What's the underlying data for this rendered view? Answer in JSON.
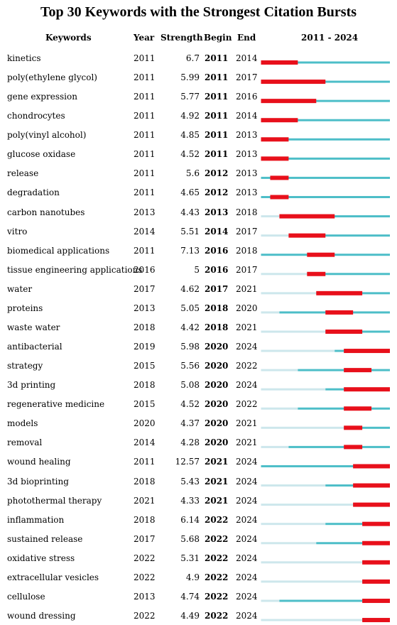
{
  "title": "Top 30 Keywords with the Strongest Citation Bursts",
  "columns": {
    "keywords": "Keywords",
    "year": "Year",
    "strength": "Strength",
    "begin": "Begin",
    "end": "End",
    "range": "2011 - 2024"
  },
  "chart_data": {
    "type": "table",
    "title": "Top 30 Keywords with the Strongest Citation Bursts",
    "timeline": [
      2011,
      2024
    ],
    "colors": {
      "burst": "#e8101b",
      "active": "#4dbec8",
      "inactive": "#cde7ec"
    },
    "rows": [
      {
        "keyword": "kinetics",
        "year": "2011",
        "strength": "6.7",
        "begin": "2011",
        "end": "2014"
      },
      {
        "keyword": "poly(ethylene glycol)",
        "year": "2011",
        "strength": "5.99",
        "begin": "2011",
        "end": "2017"
      },
      {
        "keyword": "gene expression",
        "year": "2011",
        "strength": "5.77",
        "begin": "2011",
        "end": "2016"
      },
      {
        "keyword": "chondrocytes",
        "year": "2011",
        "strength": "4.92",
        "begin": "2011",
        "end": "2014"
      },
      {
        "keyword": "poly(vinyl alcohol)",
        "year": "2011",
        "strength": "4.85",
        "begin": "2011",
        "end": "2013"
      },
      {
        "keyword": "glucose oxidase",
        "year": "2011",
        "strength": "4.52",
        "begin": "2011",
        "end": "2013"
      },
      {
        "keyword": "release",
        "year": "2011",
        "strength": "5.6",
        "begin": "2012",
        "end": "2013"
      },
      {
        "keyword": "degradation",
        "year": "2011",
        "strength": "4.65",
        "begin": "2012",
        "end": "2013"
      },
      {
        "keyword": "carbon nanotubes",
        "year": "2013",
        "strength": "4.43",
        "begin": "2013",
        "end": "2018"
      },
      {
        "keyword": "vitro",
        "year": "2014",
        "strength": "5.51",
        "begin": "2014",
        "end": "2017"
      },
      {
        "keyword": "biomedical applications",
        "year": "2011",
        "strength": "7.13",
        "begin": "2016",
        "end": "2018"
      },
      {
        "keyword": "tissue engineering applications",
        "year": "2016",
        "strength": "5",
        "begin": "2016",
        "end": "2017"
      },
      {
        "keyword": "water",
        "year": "2017",
        "strength": "4.62",
        "begin": "2017",
        "end": "2021"
      },
      {
        "keyword": "proteins",
        "year": "2013",
        "strength": "5.05",
        "begin": "2018",
        "end": "2020"
      },
      {
        "keyword": "waste water",
        "year": "2018",
        "strength": "4.42",
        "begin": "2018",
        "end": "2021"
      },
      {
        "keyword": "antibacterial",
        "year": "2019",
        "strength": "5.98",
        "begin": "2020",
        "end": "2024"
      },
      {
        "keyword": "strategy",
        "year": "2015",
        "strength": "5.56",
        "begin": "2020",
        "end": "2022"
      },
      {
        "keyword": "3d printing",
        "year": "2018",
        "strength": "5.08",
        "begin": "2020",
        "end": "2024"
      },
      {
        "keyword": "regenerative medicine",
        "year": "2015",
        "strength": "4.52",
        "begin": "2020",
        "end": "2022"
      },
      {
        "keyword": "models",
        "year": "2020",
        "strength": "4.37",
        "begin": "2020",
        "end": "2021"
      },
      {
        "keyword": "removal",
        "year": "2014",
        "strength": "4.28",
        "begin": "2020",
        "end": "2021"
      },
      {
        "keyword": "wound healing",
        "year": "2011",
        "strength": "12.57",
        "begin": "2021",
        "end": "2024"
      },
      {
        "keyword": "3d bioprinting",
        "year": "2018",
        "strength": "5.43",
        "begin": "2021",
        "end": "2024"
      },
      {
        "keyword": "photothermal therapy",
        "year": "2021",
        "strength": "4.33",
        "begin": "2021",
        "end": "2024"
      },
      {
        "keyword": "inflammation",
        "year": "2018",
        "strength": "6.14",
        "begin": "2022",
        "end": "2024"
      },
      {
        "keyword": "sustained release",
        "year": "2017",
        "strength": "5.68",
        "begin": "2022",
        "end": "2024"
      },
      {
        "keyword": "oxidative stress",
        "year": "2022",
        "strength": "5.31",
        "begin": "2022",
        "end": "2024"
      },
      {
        "keyword": "extracellular vesicles",
        "year": "2022",
        "strength": "4.9",
        "begin": "2022",
        "end": "2024"
      },
      {
        "keyword": "cellulose",
        "year": "2013",
        "strength": "4.74",
        "begin": "2022",
        "end": "2024"
      },
      {
        "keyword": "wound dressing",
        "year": "2022",
        "strength": "4.49",
        "begin": "2022",
        "end": "2024"
      }
    ]
  }
}
